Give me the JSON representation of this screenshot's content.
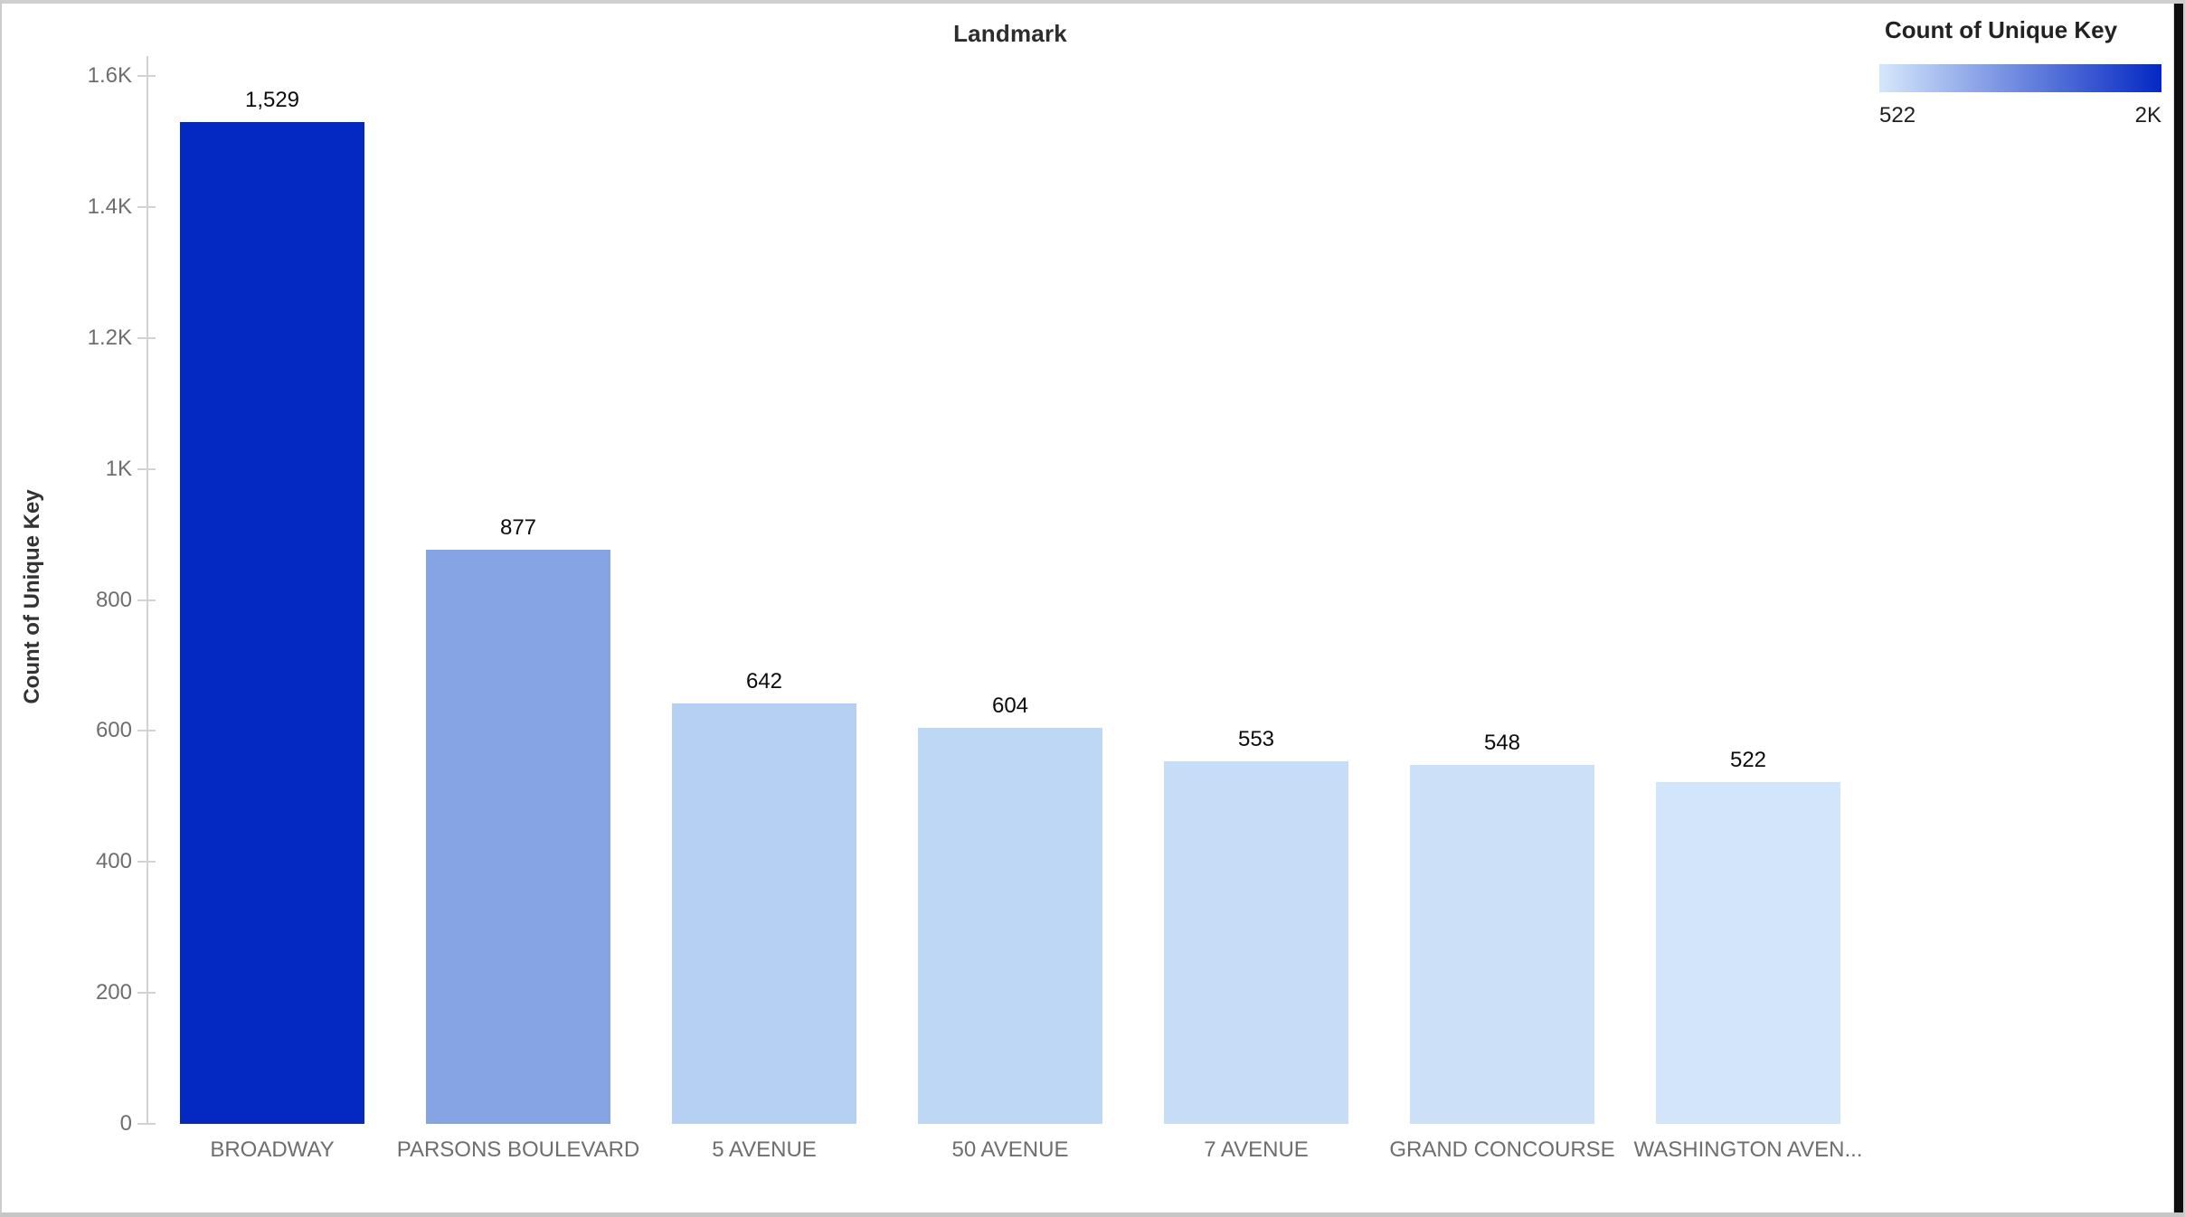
{
  "page": {
    "background": "#ffffff",
    "border_color": "#cccccc",
    "scrollbar_color": "#0e0e0e"
  },
  "chart_data": {
    "type": "bar",
    "title": "Landmark",
    "ylabel": "Count of Unique Key",
    "xlabel": "",
    "categories": [
      "BROADWAY",
      "PARSONS BOULEVARD",
      "5 AVENUE",
      "50 AVENUE",
      "7 AVENUE",
      "GRAND CONCOURSE",
      "WASHINGTON AVEN..."
    ],
    "values": [
      1529,
      877,
      642,
      604,
      553,
      548,
      522
    ],
    "value_labels": [
      "1,529",
      "877",
      "642",
      "604",
      "553",
      "548",
      "522"
    ],
    "bar_colors": [
      "#0429c3",
      "#86a3e3",
      "#b5d0f2",
      "#bed7f5",
      "#c7dcf7",
      "#cce0f8",
      "#d2e5fa"
    ],
    "ylim": [
      0,
      1600
    ],
    "yticks": [
      {
        "value": 0,
        "label": "0"
      },
      {
        "value": 200,
        "label": "200"
      },
      {
        "value": 400,
        "label": "400"
      },
      {
        "value": 600,
        "label": "600"
      },
      {
        "value": 800,
        "label": "800"
      },
      {
        "value": 1000,
        "label": "1K"
      },
      {
        "value": 1200,
        "label": "1.2K"
      },
      {
        "value": 1400,
        "label": "1.4K"
      },
      {
        "value": 1600,
        "label": "1.6K"
      }
    ],
    "grid": false,
    "axis_color": "#d2d2d2",
    "legend": {
      "position": "top-right",
      "title": "Count of Unique Key",
      "min_label": "522",
      "max_label": "2K",
      "gradient_start": "#d5e7fb",
      "gradient_end": "#0428c4"
    }
  }
}
